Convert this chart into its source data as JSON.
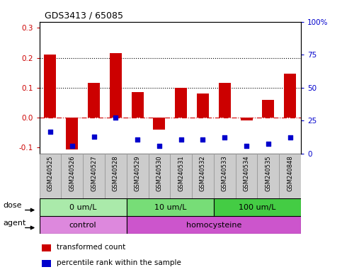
{
  "title": "GDS3413 / 65085",
  "samples": [
    "GSM240525",
    "GSM240526",
    "GSM240527",
    "GSM240528",
    "GSM240529",
    "GSM240530",
    "GSM240531",
    "GSM240532",
    "GSM240533",
    "GSM240534",
    "GSM240535",
    "GSM240848"
  ],
  "transformed_count": [
    0.21,
    -0.105,
    0.115,
    0.215,
    0.085,
    -0.04,
    0.1,
    0.08,
    0.115,
    -0.01,
    0.06,
    0.148
  ],
  "percentile_rank": [
    -0.047,
    -0.095,
    -0.063,
    0.0,
    -0.073,
    -0.095,
    -0.073,
    -0.073,
    -0.065,
    -0.095,
    -0.088,
    -0.065
  ],
  "bar_color": "#cc0000",
  "dot_color": "#0000cc",
  "ylim_left": [
    -0.12,
    0.32
  ],
  "ylim_right": [
    0,
    100
  ],
  "yticks_left": [
    -0.1,
    0.0,
    0.1,
    0.2,
    0.3
  ],
  "yticks_right": [
    0,
    25,
    50,
    75,
    100
  ],
  "ytick_labels_right": [
    "0",
    "25",
    "50",
    "75",
    "100%"
  ],
  "hlines": [
    0.1,
    0.2
  ],
  "zero_line_color": "#cc0000",
  "dose_groups": [
    {
      "label": "0 um/L",
      "start": 0,
      "end": 4,
      "color": "#aaeaaa"
    },
    {
      "label": "10 um/L",
      "start": 4,
      "end": 8,
      "color": "#77dd77"
    },
    {
      "label": "100 um/L",
      "start": 8,
      "end": 12,
      "color": "#44cc44"
    }
  ],
  "agent_groups": [
    {
      "label": "control",
      "start": 0,
      "end": 4,
      "color": "#dd88dd"
    },
    {
      "label": "homocysteine",
      "start": 4,
      "end": 12,
      "color": "#cc55cc"
    }
  ],
  "dose_label": "dose",
  "agent_label": "agent",
  "legend_items": [
    {
      "color": "#cc0000",
      "label": "transformed count"
    },
    {
      "color": "#0000cc",
      "label": "percentile rank within the sample"
    }
  ],
  "sample_bg_color": "#cccccc",
  "sample_border_color": "#999999"
}
